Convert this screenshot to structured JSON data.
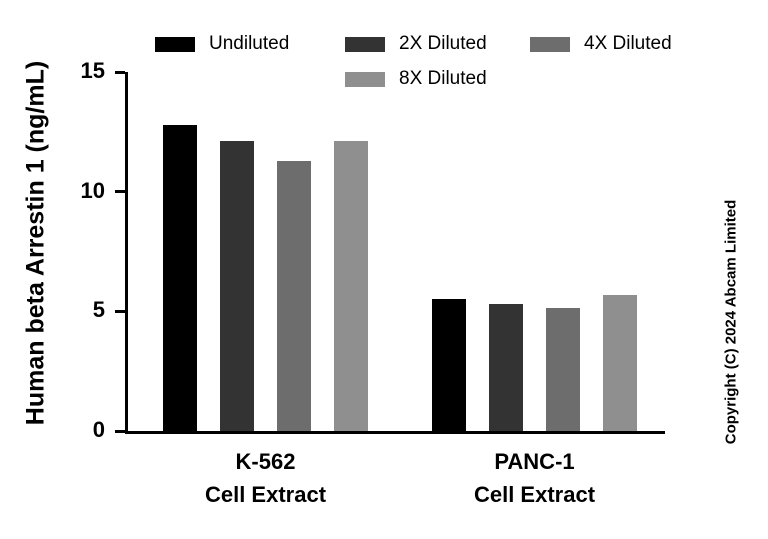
{
  "y_axis_label": "Human beta Arrestin 1 (ng/mL)",
  "copyright_text": "Copyright (C) 2024 Abcam Limited",
  "chart_data": {
    "type": "bar",
    "title": "",
    "xlabel": "",
    "ylabel": "Human beta Arrestin 1 (ng/mL)",
    "ylim": [
      0,
      15
    ],
    "yticks": [
      0,
      5,
      10,
      15
    ],
    "grid": false,
    "legend_position": "top",
    "categories": [
      [
        "K-562",
        "Cell Extract"
      ],
      [
        "PANC-1",
        "Cell Extract"
      ]
    ],
    "series": [
      {
        "name": "Undiluted",
        "color": "#000000",
        "values": [
          12.8,
          5.5
        ]
      },
      {
        "name": "2X Diluted",
        "color": "#333333",
        "values": [
          12.1,
          5.3
        ]
      },
      {
        "name": "4X Diluted",
        "color": "#6d6d6d",
        "values": [
          11.3,
          5.15
        ]
      },
      {
        "name": "8X Diluted",
        "color": "#8f8f8f",
        "values": [
          12.1,
          5.7
        ]
      }
    ]
  }
}
